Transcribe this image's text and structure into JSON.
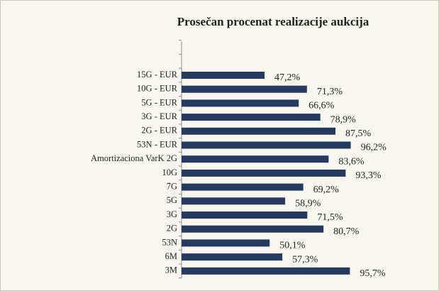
{
  "chart_data": {
    "type": "bar",
    "orientation": "horizontal",
    "title": "Prosečan procenat realizacije aukcija",
    "categories": [
      "15G - EUR",
      "10G - EUR",
      "5G - EUR",
      "3G - EUR",
      "2G - EUR",
      "53N - EUR",
      "Amortizaciona VarK 2G",
      "10G",
      "7G",
      "5G",
      "3G",
      "2G",
      "53N",
      "6M",
      "3M"
    ],
    "values": [
      47.2,
      71.3,
      66.6,
      78.9,
      87.5,
      96.2,
      83.6,
      93.3,
      69.2,
      58.9,
      71.5,
      80.7,
      50.1,
      57.3,
      95.7
    ],
    "value_labels": [
      "47,2%",
      "71,3%",
      "66,6%",
      "78,9%",
      "87,5%",
      "96,2%",
      "83,6%",
      "93,3%",
      "69,2%",
      "58,9%",
      "71,5%",
      "80,7%",
      "50,1%",
      "57,3%",
      "95,7%"
    ],
    "color": "#243a5e",
    "xlim": [
      0,
      100
    ]
  }
}
